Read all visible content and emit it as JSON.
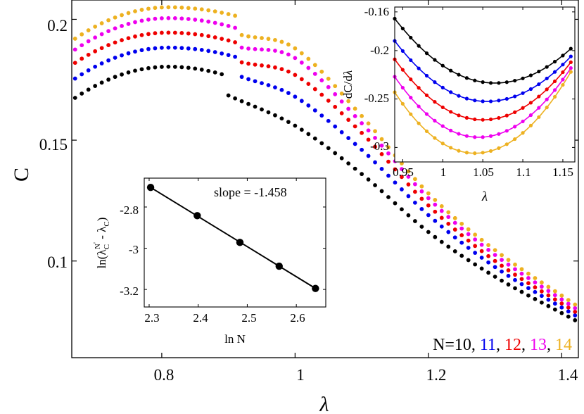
{
  "chart_data": [
    {
      "id": "main",
      "type": "scatter",
      "title": "",
      "xlabel": "λ",
      "ylabel": "C",
      "xlim": [
        0.665,
        1.425
      ],
      "ylim": [
        0.06,
        0.208
      ],
      "xticks": [
        "0.8",
        "1",
        "1.2",
        "1.4"
      ],
      "xtick_values": [
        0.8,
        1.0,
        1.2,
        1.4
      ],
      "yticks": [
        "0.1",
        "0.15",
        "0.2"
      ],
      "ytick_values": [
        0.1,
        0.15,
        0.2
      ],
      "grid": false,
      "legend": {
        "placement": "bottom-right",
        "prefix": "N=10",
        "sep": ", ",
        "entries": [
          "11",
          "12",
          "13",
          "14"
        ]
      },
      "series": [
        {
          "name": "N=10",
          "color": "#000000",
          "upper": {
            "x_start": 0.67,
            "x_end": 0.89,
            "peak_x": 0.81,
            "peak": 0.1804,
            "y_start": 0.1675,
            "y_end": 0.1773
          },
          "lower": {
            "x_start": 0.9,
            "x_end": 1.42,
            "x": [
              0.9,
              1.0,
              1.1,
              1.2,
              1.3,
              1.42
            ],
            "y": [
              0.1685,
              0.156,
              0.136,
              0.112,
              0.0935,
              0.0755
            ]
          }
        },
        {
          "name": "N=11",
          "color": "#0000ee",
          "upper": {
            "x_start": 0.67,
            "x_end": 0.91,
            "peak_x": 0.81,
            "peak": 0.1883,
            "y_start": 0.1755,
            "y_end": 0.1845
          },
          "lower": {
            "x_start": 0.92,
            "x_end": 1.42,
            "x": [
              0.92,
              1.0,
              1.1,
              1.2,
              1.3,
              1.42
            ],
            "y": [
              0.1762,
              0.168,
              0.146,
              0.119,
              0.0975,
              0.0775
            ]
          }
        },
        {
          "name": "N=12",
          "color": "#ee0000",
          "upper": {
            "x_start": 0.67,
            "x_end": 0.91,
            "peak_x": 0.81,
            "peak": 0.1945,
            "y_start": 0.182,
            "y_end": 0.1905
          },
          "lower": {
            "x_start": 0.92,
            "x_end": 1.42,
            "x": [
              0.92,
              1.0,
              1.1,
              1.2,
              1.3,
              1.42
            ],
            "y": [
              0.1822,
              0.177,
              0.153,
              0.123,
              0.1,
              0.079
            ]
          }
        },
        {
          "name": "N=13",
          "color": "#ee00ee",
          "upper": {
            "x_start": 0.67,
            "x_end": 0.91,
            "peak_x": 0.81,
            "peak": 0.2005,
            "y_start": 0.1875,
            "y_end": 0.1965
          },
          "lower": {
            "x_start": 0.92,
            "x_end": 1.42,
            "x": [
              0.92,
              1.0,
              1.1,
              1.2,
              1.3,
              1.42
            ],
            "y": [
              0.1883,
              0.184,
              0.157,
              0.126,
              0.1025,
              0.0805
            ]
          }
        },
        {
          "name": "N=14",
          "color": "#edb120",
          "upper": {
            "x_start": 0.67,
            "x_end": 0.91,
            "peak_x": 0.81,
            "peak": 0.205,
            "y_start": 0.192,
            "y_end": 0.2015
          },
          "lower": {
            "x_start": 0.92,
            "x_end": 1.42,
            "x": [
              0.92,
              1.0,
              1.1,
              1.2,
              1.3,
              1.42
            ],
            "y": [
              0.1935,
              0.188,
              0.16,
              0.128,
              0.1045,
              0.082
            ]
          }
        }
      ]
    },
    {
      "id": "inset-derivative",
      "type": "line",
      "title": "",
      "xlabel": "λ",
      "ylabel_parts": [
        "dC/d",
        "λ"
      ],
      "xlim": [
        0.94,
        1.165
      ],
      "ylim": [
        -0.315,
        -0.155
      ],
      "xticks": [
        "0.95",
        "1",
        "1.05",
        "1.1",
        "1.15"
      ],
      "xtick_values": [
        0.95,
        1.0,
        1.05,
        1.1,
        1.15
      ],
      "yticks": [
        "-0.16",
        "-0.2",
        "-0.25",
        "-0.3"
      ],
      "ytick_values": [
        -0.16,
        -0.2,
        -0.25,
        -0.3
      ],
      "series": [
        {
          "name": "N=10",
          "color": "#000000",
          "x_start": 0.94,
          "x_end": 1.16,
          "min_x": 1.065,
          "min": -0.2335,
          "y_start": -0.167,
          "y_end": -0.198
        },
        {
          "name": "N=11",
          "color": "#0000ee",
          "x_start": 0.94,
          "x_end": 1.16,
          "min_x": 1.055,
          "min": -0.2525,
          "y_start": -0.19,
          "y_end": -0.206
        },
        {
          "name": "N=12",
          "color": "#ee0000",
          "x_start": 0.94,
          "x_end": 1.16,
          "min_x": 1.05,
          "min": -0.2715,
          "y_start": -0.209,
          "y_end": -0.212
        },
        {
          "name": "N=13",
          "color": "#ee00ee",
          "x_start": 0.94,
          "x_end": 1.16,
          "min_x": 1.045,
          "min": -0.2895,
          "y_start": -0.227,
          "y_end": -0.218
        },
        {
          "name": "N=14",
          "color": "#edb120",
          "x_start": 0.94,
          "x_end": 1.16,
          "min_x": 1.04,
          "min": -0.306,
          "y_start": -0.243,
          "y_end": -0.222
        }
      ]
    },
    {
      "id": "inset-scaling",
      "type": "line",
      "title": "",
      "xlabel": "ln N",
      "ylabel_parts": [
        "ln(λ",
        "C",
        "N",
        "'",
        " - λ",
        "C",
        ")"
      ],
      "annotation": "slope = -1.458",
      "xlim": [
        2.29,
        2.66
      ],
      "ylim": [
        -3.285,
        -2.66
      ],
      "xticks": [
        "2.3",
        "2.4",
        "2.5",
        "2.6"
      ],
      "xtick_values": [
        2.3,
        2.4,
        2.5,
        2.6
      ],
      "yticks": [
        "-2.8",
        "-3",
        "-3.2"
      ],
      "ytick_values": [
        -2.8,
        -3.0,
        -3.2
      ],
      "points": {
        "x": [
          2.303,
          2.398,
          2.485,
          2.565,
          2.639
        ],
        "y": [
          -2.705,
          -2.842,
          -2.972,
          -3.087,
          -3.195
        ]
      },
      "fit": {
        "x": [
          2.303,
          2.639
        ],
        "y": [
          -2.705,
          -3.195
        ]
      },
      "color": "#000000"
    }
  ]
}
